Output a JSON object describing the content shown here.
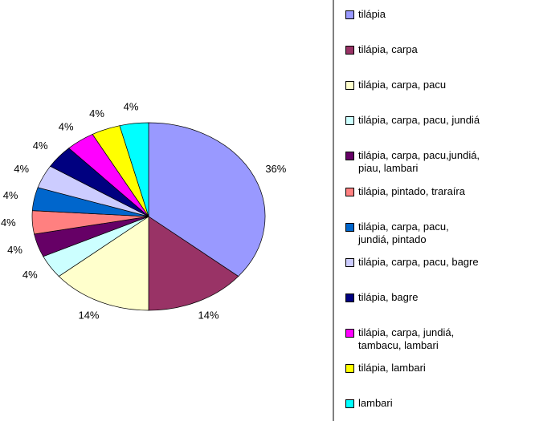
{
  "chart_data": {
    "type": "pie",
    "categories": [
      "tilápia",
      "tilápia, carpa",
      "tilápia, carpa, pacu",
      "tilápia, carpa, pacu, jundiá",
      "tilápia, carpa, pacu,jundiá,\npiau, lambari",
      "tilápia, pintado, traraíra",
      "tilápia, carpa, pacu,\njundiá, pintado",
      "tilápia, carpa, pacu, bagre",
      "tilápia, bagre",
      "tilápia, carpa, jundiá,\ntambacu, lambari",
      "tilápia, lambari",
      "lambari"
    ],
    "values": [
      36,
      14,
      14,
      4,
      4,
      4,
      4,
      4,
      4,
      4,
      4,
      4
    ],
    "value_labels": [
      "36%",
      "14%",
      "14%",
      "4%",
      "4%",
      "4%",
      "4%",
      "4%",
      "4%",
      "4%",
      "4%",
      "4%"
    ],
    "colors": [
      "#9999ff",
      "#993366",
      "#ffffcc",
      "#ccffff",
      "#660066",
      "#ff8080",
      "#0066cc",
      "#ccccff",
      "#000080",
      "#ff00ff",
      "#ffff00",
      "#00ffff"
    ]
  }
}
